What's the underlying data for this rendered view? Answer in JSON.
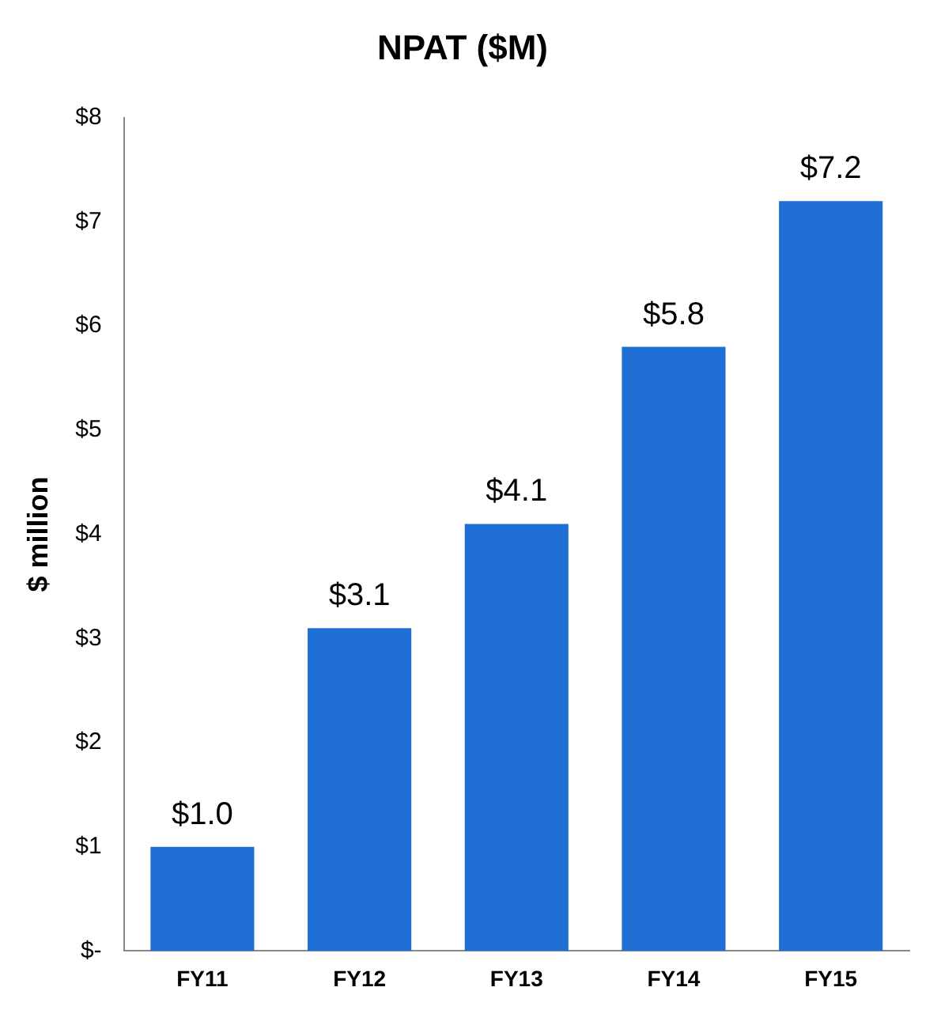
{
  "chart_data": {
    "type": "bar",
    "title": "NPAT ($M)",
    "ylabel": "$ million",
    "categories": [
      "FY11",
      "FY12",
      "FY13",
      "FY14",
      "FY15"
    ],
    "values": [
      1.0,
      3.1,
      4.1,
      5.8,
      7.2
    ],
    "value_labels": [
      "$1.0",
      "$3.1",
      "$4.1",
      "$5.8",
      "$7.2"
    ],
    "color": "#1f6fd4",
    "ylim": [
      0,
      8
    ],
    "yticks": [
      {
        "value": 0,
        "label": "$-"
      },
      {
        "value": 1,
        "label": "$1"
      },
      {
        "value": 2,
        "label": "$2"
      },
      {
        "value": 3,
        "label": "$3"
      },
      {
        "value": 4,
        "label": "$4"
      },
      {
        "value": 5,
        "label": "$5"
      },
      {
        "value": 6,
        "label": "$6"
      },
      {
        "value": 7,
        "label": "$7"
      },
      {
        "value": 8,
        "label": "$8"
      }
    ],
    "grid": false,
    "legend": false
  }
}
